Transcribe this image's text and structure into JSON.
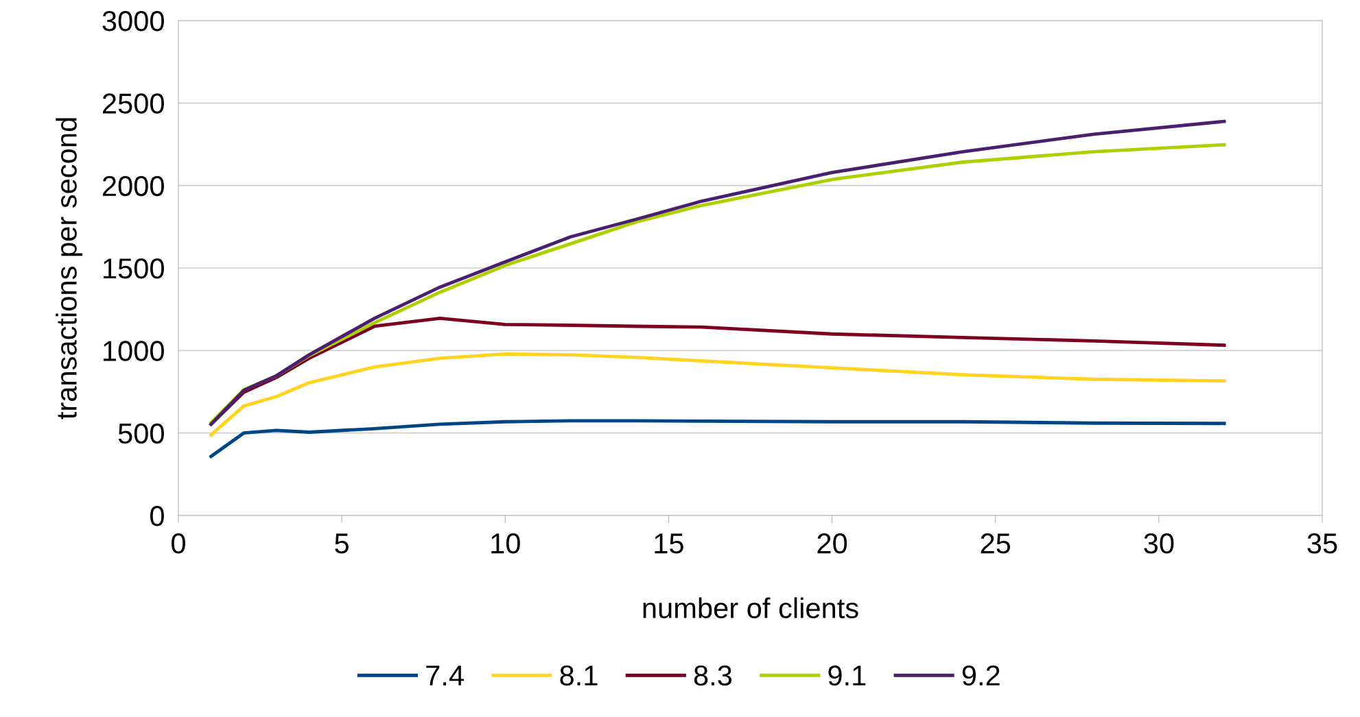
{
  "chart_data": {
    "type": "line",
    "xlabel": "number of clients",
    "ylabel": "transactions per second",
    "x": [
      1,
      2,
      3,
      4,
      6,
      8,
      10,
      12,
      14,
      16,
      20,
      24,
      28,
      32
    ],
    "series": [
      {
        "name": "7.4",
        "color": "#004586",
        "values": [
          358,
          500,
          516,
          505,
          526,
          553,
          568,
          574,
          574,
          572,
          568,
          568,
          560,
          558
        ]
      },
      {
        "name": "8.1",
        "color": "#ffd320",
        "values": [
          489,
          663,
          721,
          805,
          900,
          953,
          979,
          974,
          958,
          937,
          895,
          853,
          826,
          816
        ]
      },
      {
        "name": "8.3",
        "color": "#7e0021",
        "values": [
          553,
          747,
          837,
          953,
          1147,
          1195,
          1158,
          1153,
          1147,
          1142,
          1100,
          1079,
          1058,
          1032
        ]
      },
      {
        "name": "9.1",
        "color": "#aecf00",
        "values": [
          563,
          763,
          847,
          968,
          1168,
          1353,
          1516,
          1647,
          1779,
          1879,
          2037,
          2142,
          2205,
          2247
        ]
      },
      {
        "name": "9.2",
        "color": "#4b1f6f",
        "values": [
          553,
          758,
          847,
          974,
          1195,
          1384,
          1537,
          1689,
          1795,
          1905,
          2079,
          2205,
          2311,
          2389
        ]
      }
    ],
    "xlim": [
      0,
      35
    ],
    "xticks": [
      0,
      5,
      10,
      15,
      20,
      25,
      30,
      35
    ],
    "ylim": [
      0,
      3000
    ],
    "yticks": [
      0,
      500,
      1000,
      1500,
      2000,
      2500,
      3000
    ],
    "grid": "y",
    "legend": "bottom",
    "marker": "none",
    "line_style": "solid"
  }
}
